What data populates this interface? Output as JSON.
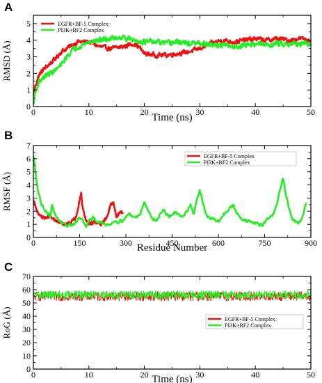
{
  "colors": {
    "red": "#ee1111",
    "green": "#22ee22"
  },
  "chart_data": [
    {
      "panel": "A",
      "type": "line",
      "xlabel": "Time (ns)",
      "ylabel": "RMSD (Å)",
      "xlim": [
        0,
        50
      ],
      "ylim": [
        0,
        5.5
      ],
      "xticks": [
        0,
        10,
        20,
        30,
        40,
        50
      ],
      "yticks": [
        0,
        1,
        2,
        3,
        4,
        5
      ],
      "legend_position": "top-left",
      "series": [
        {
          "name": "EGFR+BF-5 Complex",
          "color": "#ee1111",
          "noise": 0.15,
          "x": [
            0,
            0.3,
            1,
            2,
            3,
            4,
            5,
            6,
            7,
            8,
            10,
            12,
            14,
            16,
            18,
            19,
            20,
            22,
            24,
            26,
            28,
            30,
            32,
            34,
            36,
            38,
            40,
            42,
            44,
            46,
            48,
            50
          ],
          "values": [
            0.2,
            1.2,
            1.9,
            2.3,
            2.6,
            2.9,
            3.3,
            3.5,
            3.7,
            3.9,
            3.9,
            3.6,
            3.5,
            3.6,
            3.8,
            3.6,
            3.2,
            3.1,
            3.1,
            3.2,
            3.3,
            3.5,
            3.8,
            4.0,
            3.9,
            4.0,
            4.1,
            4.0,
            4.1,
            4.0,
            4.1,
            4.0
          ]
        },
        {
          "name": "PI3K+BF2 Complex",
          "color": "#22ee22",
          "noise": 0.17,
          "x": [
            0,
            0.3,
            1,
            2,
            3,
            4,
            5,
            6,
            7,
            8,
            10,
            12,
            14,
            16,
            18,
            20,
            22,
            24,
            26,
            28,
            30,
            32,
            34,
            36,
            38,
            40,
            42,
            44,
            46,
            48,
            50
          ],
          "values": [
            0.1,
            0.8,
            1.5,
            1.8,
            2.0,
            2.2,
            2.5,
            3.0,
            3.4,
            3.6,
            3.9,
            4.0,
            4.1,
            4.2,
            4.0,
            3.9,
            3.9,
            3.8,
            3.9,
            3.8,
            3.8,
            3.7,
            3.7,
            3.6,
            3.7,
            3.8,
            3.7,
            3.8,
            3.8,
            3.8,
            3.7
          ]
        }
      ]
    },
    {
      "panel": "B",
      "type": "line",
      "xlabel": "Residue Number",
      "ylabel": "RMSF (Å)",
      "xlim": [
        0,
        900
      ],
      "ylim": [
        0,
        7
      ],
      "xticks": [
        0,
        150,
        300,
        450,
        600,
        750,
        900
      ],
      "yticks": [
        0,
        1,
        2,
        3,
        4,
        5,
        6,
        7
      ],
      "legend_position": "top-right",
      "series": [
        {
          "name": "EGFR+BF-5 Complex",
          "color": "#ee1111",
          "noise": 0.12,
          "x": [
            0,
            5,
            10,
            20,
            30,
            40,
            50,
            60,
            70,
            80,
            100,
            120,
            140,
            150,
            155,
            160,
            170,
            180,
            200,
            220,
            240,
            250,
            260,
            270,
            280,
            290
          ],
          "values": [
            2.8,
            2.6,
            2.0,
            1.7,
            1.5,
            1.5,
            1.6,
            1.5,
            1.3,
            1.2,
            1.0,
            1.1,
            1.6,
            2.9,
            3.4,
            2.2,
            1.3,
            1.0,
            1.2,
            1.0,
            1.6,
            2.5,
            2.6,
            1.5,
            1.9,
            1.9
          ]
        },
        {
          "name": "PI3K+BF2 Complex",
          "color": "#22ee22",
          "noise": 0.13,
          "x": [
            0,
            3,
            8,
            15,
            25,
            35,
            45,
            55,
            60,
            65,
            75,
            90,
            110,
            130,
            150,
            160,
            170,
            180,
            195,
            210,
            230,
            250,
            260,
            270,
            290,
            310,
            330,
            345,
            360,
            380,
            400,
            420,
            440,
            460,
            480,
            500,
            510,
            520,
            530,
            540,
            550,
            560,
            580,
            600,
            620,
            640,
            650,
            660,
            680,
            700,
            720,
            740,
            760,
            780,
            790,
            800,
            810,
            820,
            830,
            840,
            860,
            870,
            880,
            885
          ],
          "values": [
            6.2,
            5.8,
            4.8,
            3.6,
            2.6,
            2.2,
            1.9,
            1.6,
            2.5,
            2.1,
            1.6,
            1.0,
            0.9,
            1.0,
            1.5,
            1.3,
            0.8,
            1.2,
            1.5,
            1.2,
            1.0,
            1.0,
            1.3,
            1.2,
            1.3,
            1.8,
            1.5,
            1.7,
            2.8,
            1.6,
            1.3,
            2.1,
            1.6,
            1.9,
            1.5,
            2.1,
            2.5,
            1.8,
            2.9,
            3.6,
            2.6,
            1.7,
            1.4,
            1.2,
            1.8,
            2.3,
            2.4,
            1.8,
            1.4,
            1.2,
            1.1,
            0.9,
            1.4,
            1.8,
            2.5,
            3.6,
            4.4,
            3.2,
            2.1,
            1.4,
            1.1,
            1.5,
            2.2,
            2.7
          ]
        }
      ]
    },
    {
      "panel": "C",
      "type": "line",
      "xlabel": "Time (ns)",
      "ylabel": "RoG (Å)",
      "xlim": [
        0,
        50
      ],
      "ylim": [
        0,
        70
      ],
      "xticks": [
        0,
        10,
        20,
        30,
        40,
        50
      ],
      "yticks": [
        0,
        10,
        20,
        30,
        40,
        50,
        60,
        70
      ],
      "legend_position": "bottom-right",
      "series": [
        {
          "name": "EGFR+BF-5 Complex",
          "color": "#ee1111",
          "noise": 3.5,
          "x": [
            0,
            10,
            20,
            30,
            40,
            50
          ],
          "values": [
            55,
            55,
            55,
            55,
            55,
            55
          ]
        },
        {
          "name": "PI3K+BF2 Complex",
          "color": "#22ee22",
          "noise": 3.2,
          "x": [
            0,
            10,
            20,
            30,
            40,
            50
          ],
          "values": [
            56,
            56,
            56,
            56,
            56,
            56
          ]
        }
      ]
    }
  ]
}
